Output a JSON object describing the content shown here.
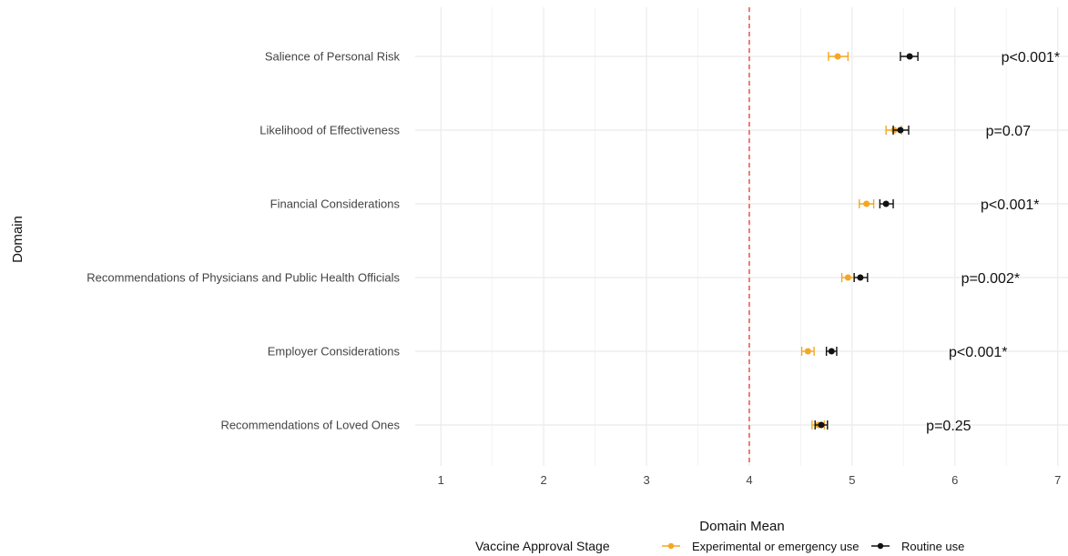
{
  "chart_data": {
    "type": "scatter",
    "xlabel": "Domain Mean",
    "ylabel": "Domain",
    "xlim": [
      0.75,
      7.1
    ],
    "x_ticks": [
      1,
      2,
      3,
      4,
      5,
      6,
      7
    ],
    "reference_line": {
      "x": 4,
      "color": "#e8473c",
      "style": "dashed"
    },
    "grid": true,
    "legend": {
      "title": "Vaccine Approval Stage",
      "position": "bottom"
    },
    "categories": [
      "Salience of Personal Risk",
      "Likelihood of Effectiveness",
      "Financial Considerations",
      "Recommendations of Physicians and Public Health Officials",
      "Employer Considerations",
      "Recommendations of Loved Ones"
    ],
    "series": [
      {
        "name": "Experimental or emergency use",
        "color": "#f5a623",
        "values": [
          4.86,
          5.41,
          5.14,
          4.96,
          4.57,
          4.67
        ],
        "lower": [
          4.77,
          5.33,
          5.07,
          4.9,
          4.51,
          4.61
        ],
        "upper": [
          4.96,
          5.48,
          5.21,
          5.02,
          4.63,
          4.73
        ]
      },
      {
        "name": "Routine use",
        "color": "#111111",
        "values": [
          5.56,
          5.47,
          5.33,
          5.08,
          4.8,
          4.7
        ],
        "lower": [
          5.47,
          5.4,
          5.27,
          5.02,
          4.75,
          4.64
        ],
        "upper": [
          5.64,
          5.55,
          5.4,
          5.15,
          4.85,
          4.76
        ]
      }
    ],
    "annotations": [
      {
        "category": "Salience of Personal Risk",
        "text": "p<0.001*",
        "x": 6.45
      },
      {
        "category": "Likelihood of Effectiveness",
        "text": "p=0.07",
        "x": 6.3
      },
      {
        "category": "Financial Considerations",
        "text": "p<0.001*",
        "x": 6.25
      },
      {
        "category": "Recommendations of Physicians and Public Health Officials",
        "text": "p=0.002*",
        "x": 6.06
      },
      {
        "category": "Employer Considerations",
        "text": "p<0.001*",
        "x": 5.94
      },
      {
        "category": "Recommendations of Loved Ones",
        "text": "p=0.25",
        "x": 5.72
      }
    ]
  }
}
